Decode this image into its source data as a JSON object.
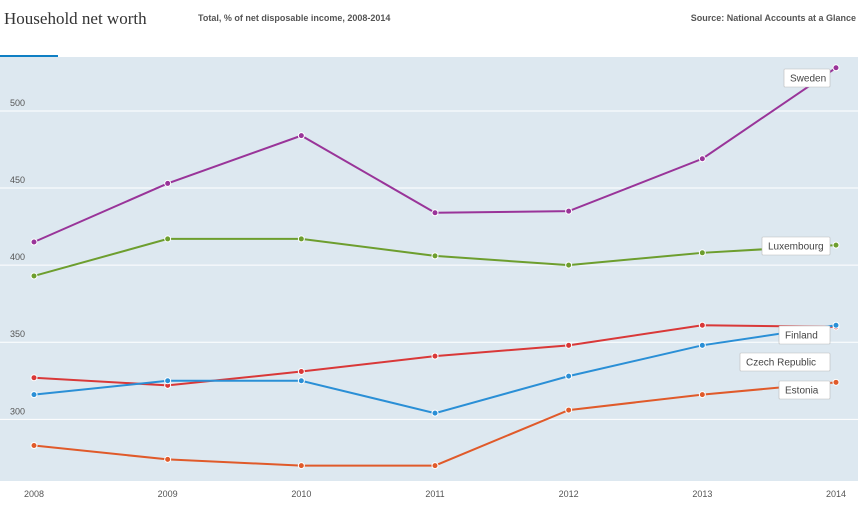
{
  "header": {
    "title": "Household net worth",
    "subtitle": "Total, % of net disposable income, 2008-2014",
    "source": "Source: National Accounts at a Glance"
  },
  "colors": {
    "Sweden": "#993499",
    "Luxembourg": "#6d9e2e",
    "Finland": "#d93838",
    "Czech Republic": "#2a8fd6",
    "Estonia": "#e05a2a",
    "accent": "#0f7fc4",
    "background": "#dde8f0"
  },
  "chart_data": {
    "type": "line",
    "title": "Household net worth",
    "subtitle": "Total, % of net disposable income, 2008-2014",
    "xlabel": "",
    "ylabel": "",
    "x": [
      "2008",
      "2009",
      "2010",
      "2011",
      "2012",
      "2013",
      "2014"
    ],
    "y_ticks": [
      "300",
      "350",
      "400",
      "450",
      "500"
    ],
    "ylim": [
      260,
      535
    ],
    "grid": true,
    "series": [
      {
        "name": "Sweden",
        "values": [
          415,
          453,
          484,
          434,
          435,
          469,
          528
        ]
      },
      {
        "name": "Luxembourg",
        "values": [
          393,
          417,
          417,
          406,
          400,
          408,
          413
        ]
      },
      {
        "name": "Finland",
        "values": [
          327,
          322,
          331,
          341,
          348,
          361,
          360
        ]
      },
      {
        "name": "Czech Republic",
        "values": [
          316,
          325,
          325,
          304,
          328,
          348,
          361
        ]
      },
      {
        "name": "Estonia",
        "values": [
          283,
          274,
          270,
          270,
          306,
          316,
          324
        ]
      }
    ]
  }
}
